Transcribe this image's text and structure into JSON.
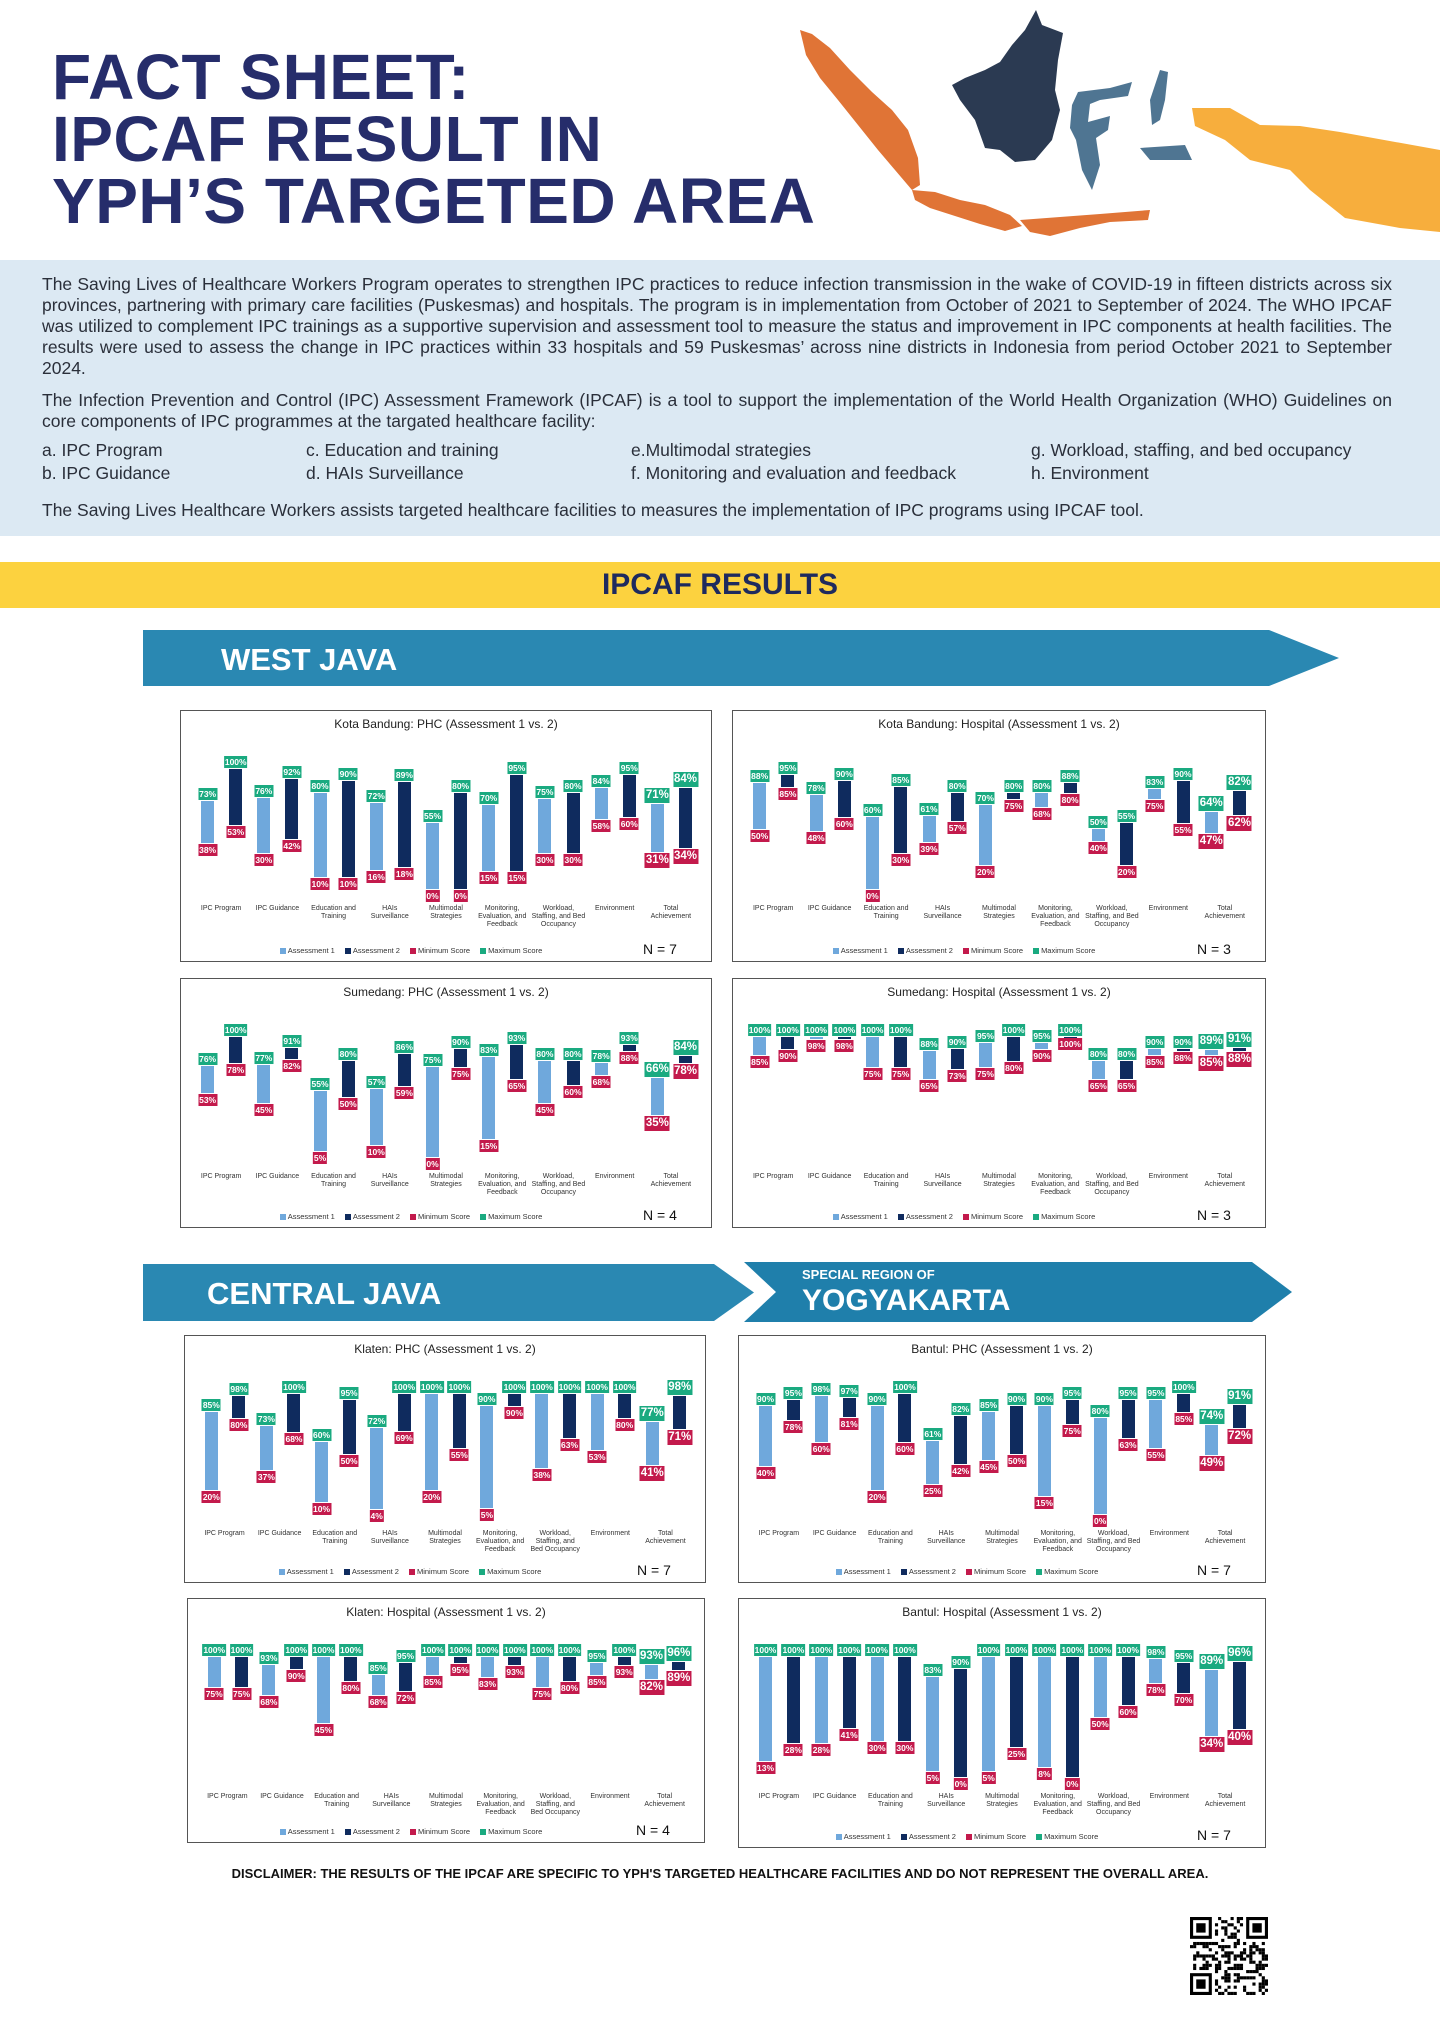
{
  "header": {
    "title_lines": [
      "FACT SHEET:",
      "IPCAF RESULT IN",
      "YPH’S TARGETED AREA"
    ],
    "map_colors": {
      "sumatra_java": "#e07436",
      "kalimantan": "#2b3a52",
      "sulawesi": "#4f7592",
      "papua": "#f7ae3d"
    }
  },
  "intro": {
    "paragraph1": "The Saving Lives of Healthcare Workers Program operates to strengthen IPC practices to reduce infection transmission in the wake of COVID-19 in fifteen districts across six provinces, partnering with primary care facilities (Puskesmas) and hospitals. The program is in implementation from October of 2021 to September of 2024. The WHO IPCAF was utilized to complement IPC trainings as a supportive supervision and assessment tool to measure the status and improvement in IPC components at health facilities. The results were used to assess the change in IPC practices within 33 hospitals and 59 Puskesmas’ across nine districts in Indonesia from period October 2021 to September 2024.",
    "paragraph2": "The Infection Prevention and Control (IPC) Assessment Framework (IPCAF) is a tool to support the implementation of the World Health Organization (WHO) Guidelines on core components of IPC programmes at the targated healthcare facility:",
    "components": [
      "a.  IPC Program",
      "b.  IPC Guidance",
      "c.  Education and training",
      "d.  HAIs Surveillance",
      "e.Multimodal strategies",
      "f. Monitoring and evaluation and feedback",
      "g.  Workload, staffing, and bed occupancy",
      "h.  Environment"
    ],
    "paragraph3": "The Saving Lives Healthcare Workers assists targeted healthcare facilities to measures the implementation of IPC programs using IPCAF tool."
  },
  "results_heading": "IPCAF RESULTS",
  "regions": {
    "west_java": "WEST JAVA",
    "central_java": "CENTRAL JAVA",
    "yogyakarta_prefix": "SPECIAL REGION OF",
    "yogyakarta": "YOGYAKARTA"
  },
  "legend": [
    "Assessment 1",
    "Assessment 2",
    "Minimum Score",
    "Maximum Score"
  ],
  "colors": {
    "assessment1": "#6fa8dc",
    "assessment2": "#0f2b5e",
    "minimum": "#c31a4c",
    "maximum": "#1aaa80",
    "banner": "#2a88b2",
    "band": "#fcd23f"
  },
  "chart_data": [
    {
      "type": "bar",
      "title": "Kota Bandung: PHC (Assessment 1 vs. 2)",
      "n_label": "N = 7",
      "categories": [
        "IPC Program",
        "IPC Guidance",
        "Education and Training",
        "HAIs Surveillance",
        "Multimodal Strategies",
        "Monitoring, Evaluation, and Feedback",
        "Workload, Staffing, and Bed Occupancy",
        "Environment",
        "Total Achievement"
      ],
      "ylim": [
        0,
        100
      ],
      "series": [
        {
          "name": "Assessment 1",
          "max": [
            73,
            76,
            80,
            72,
            55,
            70,
            75,
            84,
            71
          ],
          "min": [
            38,
            30,
            10,
            16,
            0,
            15,
            30,
            58,
            31
          ]
        },
        {
          "name": "Assessment 2",
          "max": [
            100,
            92,
            90,
            89,
            80,
            95,
            80,
            95,
            84
          ],
          "min": [
            53,
            42,
            10,
            18,
            0,
            15,
            30,
            60,
            34
          ]
        }
      ]
    },
    {
      "type": "bar",
      "title": "Kota Bandung: Hospital (Assessment 1 vs. 2)",
      "n_label": "N = 3",
      "categories": [
        "IPC Program",
        "IPC Guidance",
        "Education and Training",
        "HAIs Surveillance",
        "Multimodal Strategies",
        "Monitoring, Evaluation, and Feedback",
        "Workload, Staffing, and Bed Occupancy",
        "Environment",
        "Total Achievement"
      ],
      "ylim": [
        0,
        100
      ],
      "series": [
        {
          "name": "Assessment 1",
          "max": [
            88,
            78,
            60,
            61,
            70,
            80,
            50,
            83,
            64
          ],
          "min": [
            50,
            48,
            0,
            39,
            20,
            68,
            40,
            75,
            47
          ]
        },
        {
          "name": "Assessment 2",
          "max": [
            95,
            90,
            85,
            80,
            80,
            88,
            55,
            90,
            82
          ],
          "min": [
            85,
            60,
            30,
            57,
            75,
            80,
            20,
            55,
            62
          ]
        }
      ]
    },
    {
      "type": "bar",
      "title": "Sumedang: PHC (Assessment 1 vs. 2)",
      "n_label": "N = 4",
      "categories": [
        "IPC Program",
        "IPC Guidance",
        "Education and Training",
        "HAIs Surveillance",
        "Multimodal Strategies",
        "Monitoring, Evaluation, and Feedback",
        "Workload, Staffing, and Bed Occupancy",
        "Environment",
        "Total Achievement"
      ],
      "ylim": [
        0,
        100
      ],
      "series": [
        {
          "name": "Assessment 1",
          "max": [
            76,
            77,
            55,
            57,
            75,
            83,
            80,
            78,
            66
          ],
          "min": [
            53,
            45,
            5,
            10,
            0,
            15,
            45,
            68,
            35
          ]
        },
        {
          "name": "Assessment 2",
          "max": [
            100,
            91,
            80,
            86,
            90,
            93,
            80,
            93,
            84
          ],
          "min": [
            78,
            82,
            50,
            59,
            75,
            65,
            60,
            88,
            78
          ]
        }
      ]
    },
    {
      "type": "bar",
      "title": "Sumedang: Hospital (Assessment 1 vs. 2)",
      "n_label": "N = 3",
      "categories": [
        "IPC Program",
        "IPC Guidance",
        "Education and Training",
        "HAIs Surveillance",
        "Multimodal Strategies",
        "Monitoring, Evaluation, and Feedback",
        "Workload, Staffing, and Bed Occupancy",
        "Environment",
        "Total Achievement"
      ],
      "ylim": [
        0,
        100
      ],
      "series": [
        {
          "name": "Assessment 1",
          "max": [
            100,
            100,
            100,
            88,
            95,
            95,
            80,
            90,
            89
          ],
          "min": [
            85,
            98,
            75,
            65,
            75,
            90,
            65,
            85,
            85
          ]
        },
        {
          "name": "Assessment 2",
          "max": [
            100,
            100,
            100,
            90,
            100,
            100,
            80,
            90,
            91
          ],
          "min": [
            90,
            98,
            75,
            73,
            80,
            100,
            65,
            88,
            88
          ]
        }
      ]
    },
    {
      "type": "bar",
      "title": "Klaten: PHC (Assessment 1 vs. 2)",
      "n_label": "N = 7",
      "categories": [
        "IPC Program",
        "IPC Guidance",
        "Education and Training",
        "HAIs Surveillance",
        "Multimodal Strategies",
        "Monitoring, Evaluation, and Feedback",
        "Workload, Staffing, and Bed Occupancy",
        "Environment",
        "Total Achievement"
      ],
      "ylim": [
        0,
        100
      ],
      "series": [
        {
          "name": "Assessment 1",
          "max": [
            85,
            73,
            60,
            72,
            100,
            90,
            100,
            100,
            77
          ],
          "min": [
            20,
            37,
            10,
            4,
            20,
            5,
            38,
            53,
            41
          ]
        },
        {
          "name": "Assessment 2",
          "max": [
            98,
            100,
            95,
            100,
            100,
            100,
            100,
            100,
            98
          ],
          "min": [
            80,
            68,
            50,
            69,
            55,
            90,
            63,
            80,
            71
          ]
        }
      ]
    },
    {
      "type": "bar",
      "title": "Bantul: PHC (Assessment 1 vs. 2)",
      "n_label": "N = 7",
      "categories": [
        "IPC Program",
        "IPC Guidance",
        "Education and Training",
        "HAIs Surveillance",
        "Multimodal Strategies",
        "Monitoring, Evaluation, and Feedback",
        "Workload, Staffing, and Bed Occupancy",
        "Environment",
        "Total Achievement"
      ],
      "ylim": [
        0,
        100
      ],
      "series": [
        {
          "name": "Assessment 1",
          "max": [
            90,
            98,
            90,
            61,
            85,
            90,
            80,
            95,
            74
          ],
          "min": [
            40,
            60,
            20,
            25,
            45,
            15,
            0,
            55,
            49
          ]
        },
        {
          "name": "Assessment 2",
          "max": [
            95,
            97,
            100,
            82,
            90,
            95,
            95,
            100,
            91
          ],
          "min": [
            78,
            81,
            60,
            42,
            50,
            75,
            63,
            85,
            72
          ]
        }
      ]
    },
    {
      "type": "bar",
      "title": "Klaten: Hospital (Assessment 1 vs. 2)",
      "n_label": "N = 4",
      "categories": [
        "IPC Program",
        "IPC Guidance",
        "Education and Training",
        "HAIs Surveillance",
        "Multimodal Strategies",
        "Monitoring, Evaluation, and Feedback",
        "Workload, Staffing, and Bed Occupancy",
        "Environment",
        "Total Achievement"
      ],
      "ylim": [
        0,
        100
      ],
      "series": [
        {
          "name": "Assessment 1",
          "max": [
            100,
            93,
            100,
            85,
            100,
            100,
            100,
            95,
            93
          ],
          "min": [
            75,
            68,
            45,
            68,
            85,
            83,
            75,
            85,
            82
          ]
        },
        {
          "name": "Assessment 2",
          "max": [
            100,
            100,
            100,
            95,
            100,
            100,
            100,
            100,
            96
          ],
          "min": [
            75,
            90,
            80,
            72,
            95,
            93,
            80,
            93,
            89
          ]
        }
      ]
    },
    {
      "type": "bar",
      "title": "Bantul: Hospital (Assessment 1 vs. 2)",
      "n_label": "N = 7",
      "categories": [
        "IPC Program",
        "IPC Guidance",
        "Education and Training",
        "HAIs Surveillance",
        "Multimodal Strategies",
        "Monitoring, Evaluation, and Feedback",
        "Workload, Staffing, and Bed Occupancy",
        "Environment",
        "Total Achievement"
      ],
      "ylim": [
        0,
        100
      ],
      "series": [
        {
          "name": "Assessment 1",
          "max": [
            100,
            100,
            100,
            83,
            100,
            100,
            100,
            98,
            89
          ],
          "min": [
            13,
            28,
            30,
            5,
            5,
            8,
            50,
            78,
            34
          ]
        },
        {
          "name": "Assessment 2",
          "max": [
            100,
            100,
            100,
            90,
            100,
            100,
            100,
            95,
            96
          ],
          "min": [
            28,
            41,
            30,
            0,
            25,
            0,
            60,
            70,
            40
          ]
        }
      ]
    }
  ],
  "disclaimer": "DISCLAIMER: THE RESULTS OF THE IPCAF ARE SPECIFIC TO YPH'S TARGETED HEALTHCARE FACILITIES AND DO NOT REPRESENT THE OVERALL AREA.",
  "qr_icon": "qr-code-icon"
}
